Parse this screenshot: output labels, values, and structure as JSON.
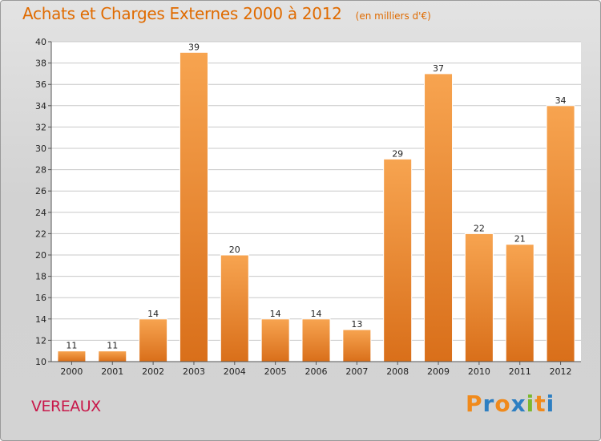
{
  "header": {
    "title": "Achats et Charges Externes 2000 à 2012",
    "subtitle": "(en milliers d'€)"
  },
  "commune": "VEREAUX",
  "logo": {
    "text": "Proxiti",
    "letters": [
      "P",
      "r",
      "o",
      "x",
      "i",
      "t",
      "i"
    ],
    "colors": [
      "#f08a1c",
      "#2e7fc2",
      "#f08a1c",
      "#2e7fc2",
      "#7cb82f",
      "#f08a1c",
      "#2e7fc2"
    ]
  },
  "colors": {
    "bar_top": "#f7a450",
    "bar_bottom": "#d96f1a",
    "title": "#e06b00",
    "commune": "#c8184a"
  },
  "chart_data": {
    "type": "bar",
    "title": "Achats et Charges Externes 2000 à 2012",
    "subtitle": "(en milliers d'€)",
    "categories": [
      "2000",
      "2001",
      "2002",
      "2003",
      "2004",
      "2005",
      "2006",
      "2007",
      "2008",
      "2009",
      "2010",
      "2011",
      "2012"
    ],
    "values": [
      11,
      11,
      14,
      39,
      20,
      14,
      14,
      13,
      29,
      37,
      22,
      21,
      34
    ],
    "ylim": [
      10,
      40
    ],
    "yticks": [
      10,
      12,
      14,
      16,
      18,
      20,
      22,
      24,
      26,
      28,
      30,
      32,
      34,
      36,
      38,
      40
    ],
    "grid": true,
    "xlabel": "",
    "ylabel": ""
  }
}
